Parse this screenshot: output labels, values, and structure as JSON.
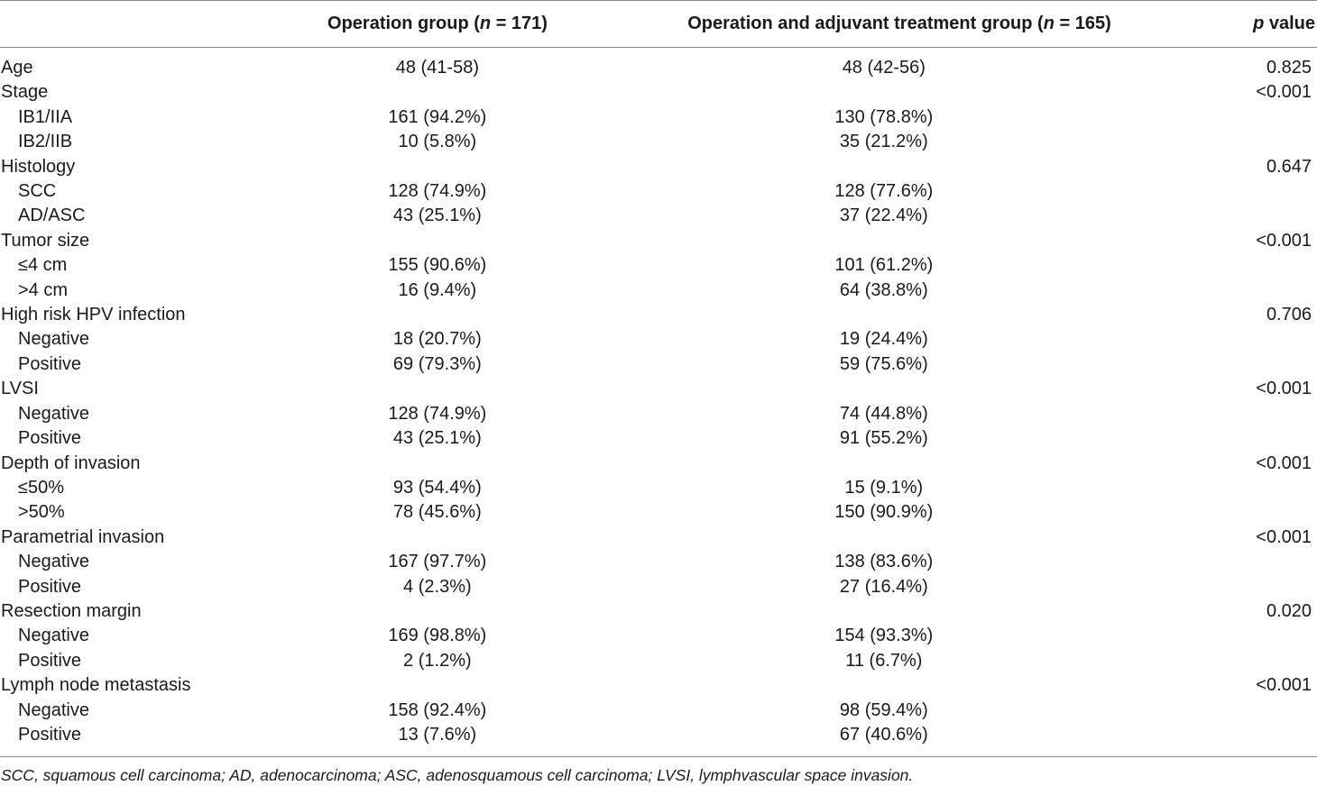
{
  "header": {
    "col1_prefix": "Operation group (",
    "col1_n": "n",
    "col1_suffix": " = 171)",
    "col2_prefix": "Operation and adjuvant treatment group (",
    "col2_n": "n",
    "col2_suffix": " = 165)",
    "col3_p": "p",
    "col3_suffix": " value"
  },
  "rows": [
    {
      "label": "Age",
      "sub": false,
      "op": "48 (41-58)",
      "adj": "48 (42-56)",
      "p": "0.825"
    },
    {
      "label": "Stage",
      "sub": false,
      "op": "",
      "adj": "",
      "p": "<0.001"
    },
    {
      "label": "IB1/IIA",
      "sub": true,
      "op": "161 (94.2%)",
      "adj": "130 (78.8%)",
      "p": ""
    },
    {
      "label": "IB2/IIB",
      "sub": true,
      "op": "10 (5.8%)",
      "adj": "35 (21.2%)",
      "p": ""
    },
    {
      "label": "Histology",
      "sub": false,
      "op": "",
      "adj": "",
      "p": "0.647"
    },
    {
      "label": "SCC",
      "sub": true,
      "op": "128 (74.9%)",
      "adj": "128 (77.6%)",
      "p": ""
    },
    {
      "label": "AD/ASC",
      "sub": true,
      "op": "43 (25.1%)",
      "adj": "37 (22.4%)",
      "p": ""
    },
    {
      "label": "Tumor size",
      "sub": false,
      "op": "",
      "adj": "",
      "p": "<0.001"
    },
    {
      "label": "≤4 cm",
      "sub": true,
      "op": "155 (90.6%)",
      "adj": "101 (61.2%)",
      "p": ""
    },
    {
      "label": ">4 cm",
      "sub": true,
      "op": "16 (9.4%)",
      "adj": "64 (38.8%)",
      "p": ""
    },
    {
      "label": "High risk HPV infection",
      "sub": false,
      "op": "",
      "adj": "",
      "p": "0.706"
    },
    {
      "label": "Negative",
      "sub": true,
      "op": "18 (20.7%)",
      "adj": "19 (24.4%)",
      "p": ""
    },
    {
      "label": "Positive",
      "sub": true,
      "op": "69 (79.3%)",
      "adj": "59 (75.6%)",
      "p": ""
    },
    {
      "label": "LVSI",
      "sub": false,
      "op": "",
      "adj": "",
      "p": "<0.001"
    },
    {
      "label": "Negative",
      "sub": true,
      "op": "128 (74.9%)",
      "adj": "74 (44.8%)",
      "p": ""
    },
    {
      "label": "Positive",
      "sub": true,
      "op": "43 (25.1%)",
      "adj": "91 (55.2%)",
      "p": ""
    },
    {
      "label": "Depth of invasion",
      "sub": false,
      "op": "",
      "adj": "",
      "p": "<0.001"
    },
    {
      "label": "≤50%",
      "sub": true,
      "op": "93 (54.4%)",
      "adj": "15 (9.1%)",
      "p": ""
    },
    {
      "label": ">50%",
      "sub": true,
      "op": "78 (45.6%)",
      "adj": "150 (90.9%)",
      "p": ""
    },
    {
      "label": "Parametrial invasion",
      "sub": false,
      "op": "",
      "adj": "",
      "p": "<0.001"
    },
    {
      "label": "Negative",
      "sub": true,
      "op": "167 (97.7%)",
      "adj": "138 (83.6%)",
      "p": ""
    },
    {
      "label": "Positive",
      "sub": true,
      "op": "4 (2.3%)",
      "adj": "27 (16.4%)",
      "p": ""
    },
    {
      "label": "Resection margin",
      "sub": false,
      "op": "",
      "adj": "",
      "p": "0.020"
    },
    {
      "label": "Negative",
      "sub": true,
      "op": "169 (98.8%)",
      "adj": "154 (93.3%)",
      "p": ""
    },
    {
      "label": "Positive",
      "sub": true,
      "op": "2 (1.2%)",
      "adj": "11 (6.7%)",
      "p": ""
    },
    {
      "label": "Lymph node metastasis",
      "sub": false,
      "op": "",
      "adj": "",
      "p": "<0.001"
    },
    {
      "label": "Negative",
      "sub": true,
      "op": "158 (92.4%)",
      "adj": "98 (59.4%)",
      "p": ""
    },
    {
      "label": "Positive",
      "sub": true,
      "op": "13 (7.6%)",
      "adj": "67 (40.6%)",
      "p": ""
    }
  ],
  "footnote": "SCC, squamous cell carcinoma; AD, adenocarcinoma; ASC, adenosquamous cell carcinoma; LVSI, lymphvascular space invasion."
}
